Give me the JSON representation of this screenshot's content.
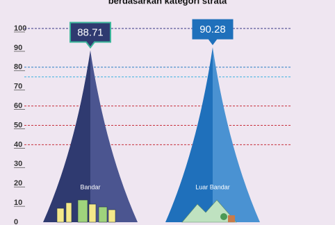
{
  "chart_data": {
    "type": "cone",
    "title": "berdasarkan kategori strata",
    "categories": [
      "Bandar",
      "Luar Bandar"
    ],
    "values": [
      88.71,
      90.28
    ],
    "colors": [
      "#2f3a70",
      "#1f70bb"
    ],
    "highlight_colors": [
      "#4b5590",
      "#4a92d2"
    ],
    "ylim": [
      0,
      100
    ],
    "yticks": [
      0,
      10,
      20,
      30,
      40,
      50,
      60,
      70,
      80,
      90,
      100
    ],
    "reference_lines": [
      {
        "value": 100,
        "color": "#3a3585"
      },
      {
        "value": 80,
        "color": "#2d7fc4"
      },
      {
        "value": 75,
        "color": "#3db0e0"
      },
      {
        "value": 60,
        "color": "#c8303c"
      },
      {
        "value": 50,
        "color": "#c8303c"
      },
      {
        "value": 40,
        "color": "#c8303c"
      }
    ]
  }
}
